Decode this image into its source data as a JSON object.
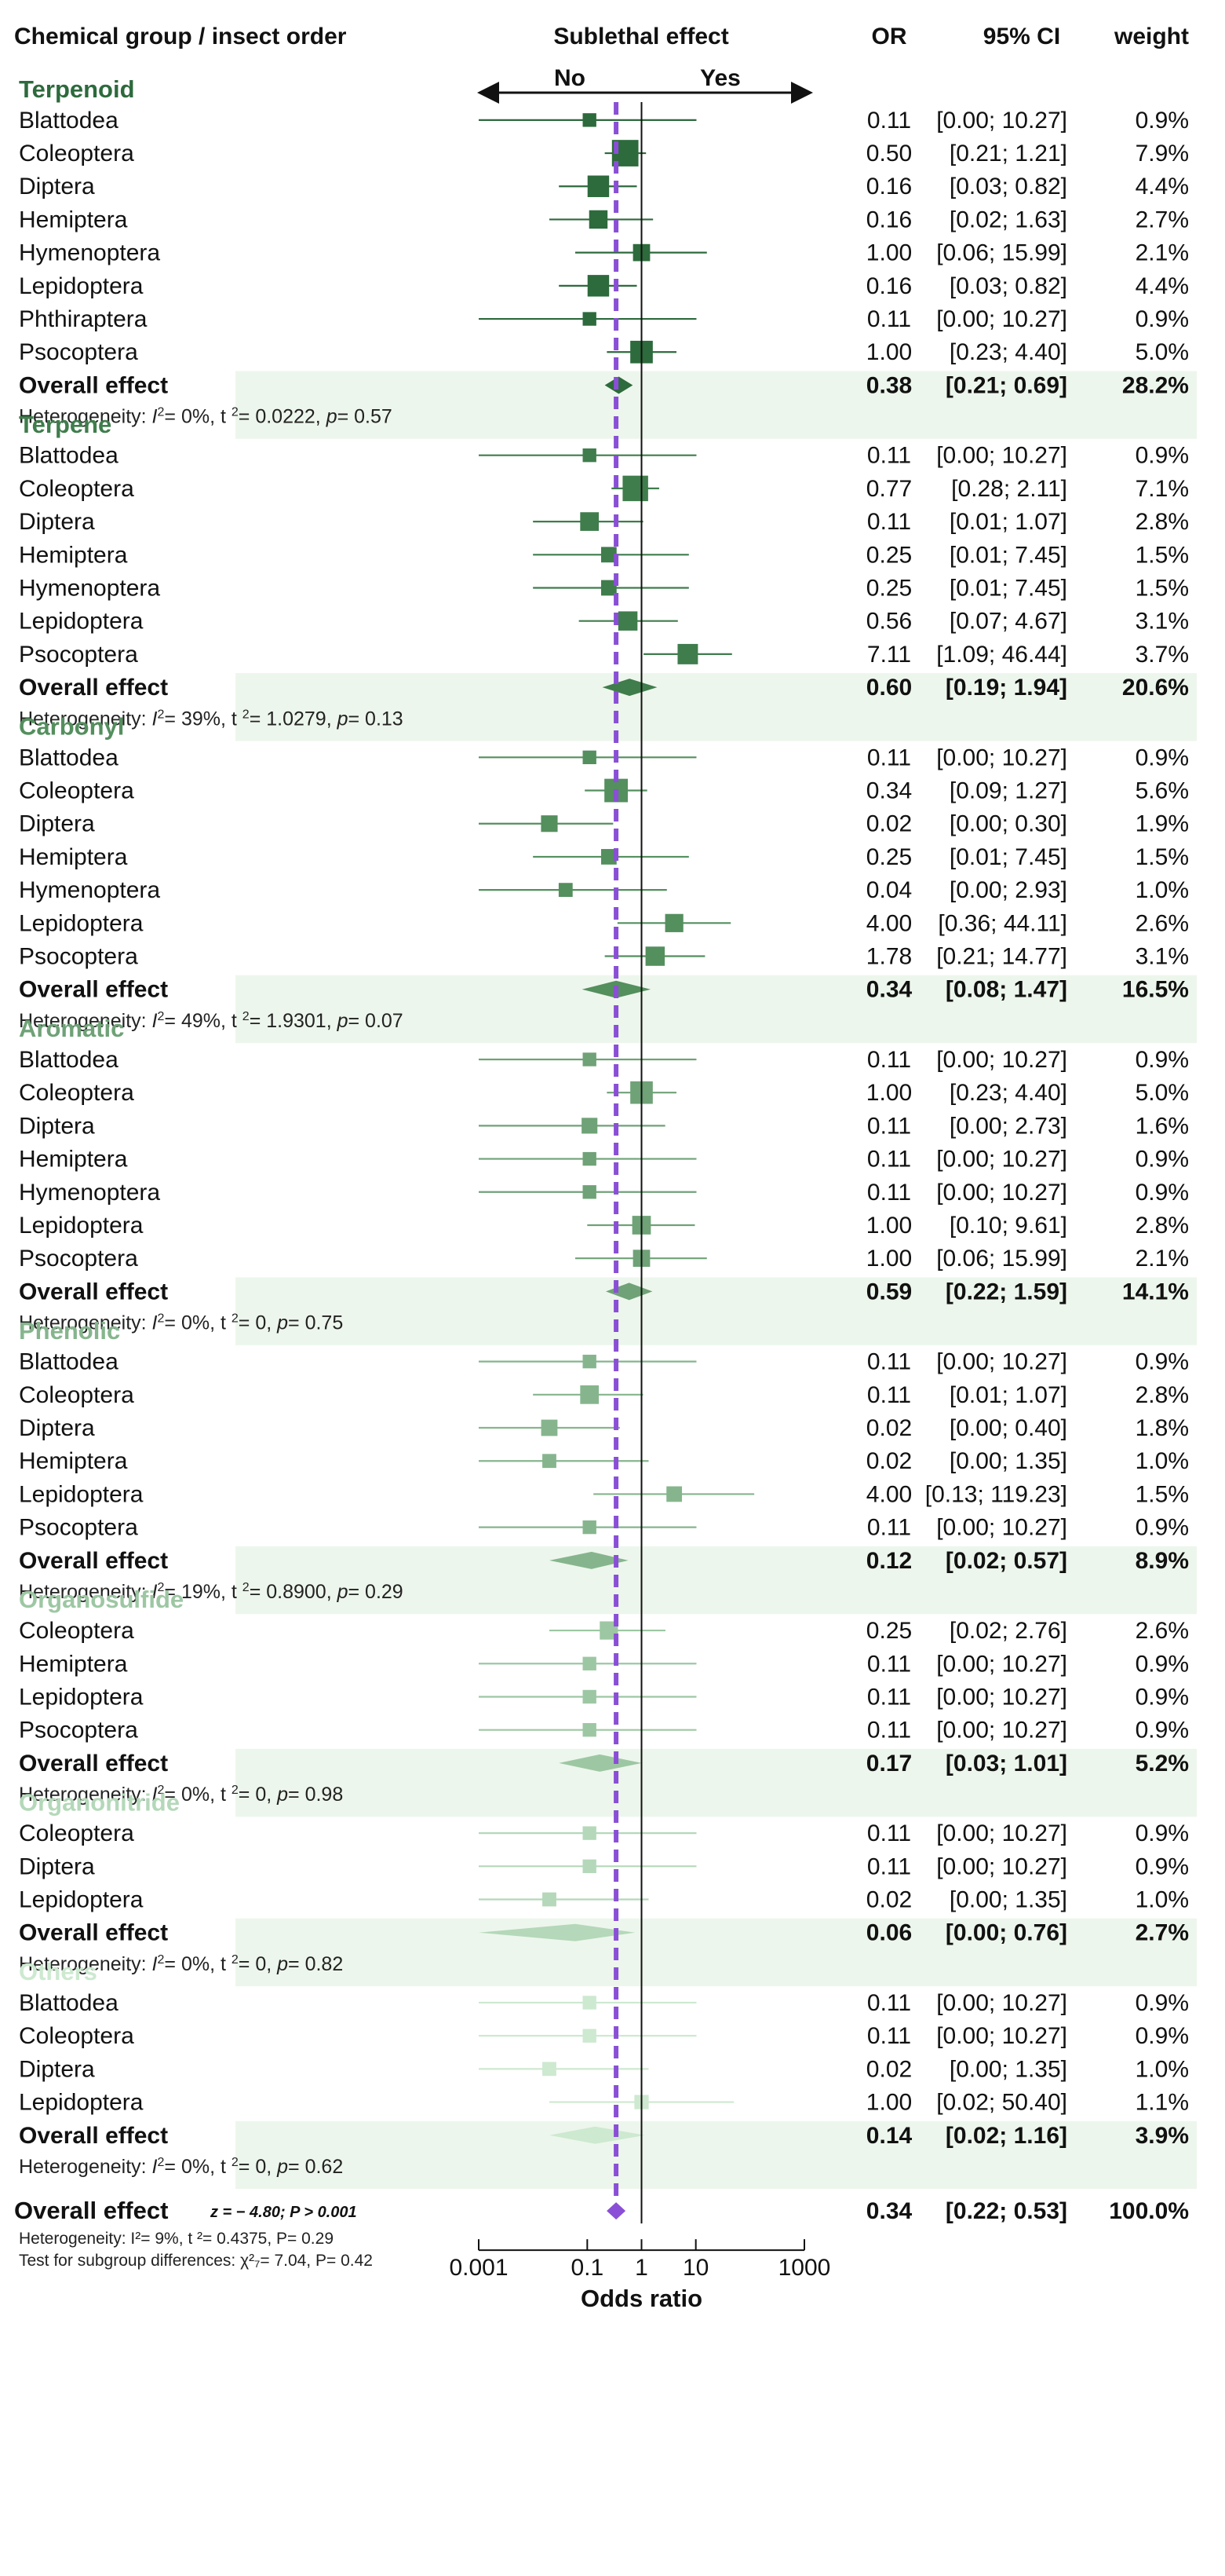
{
  "header": {
    "group_col": "Chemical group / insect order",
    "effect_col": "Sublethal effect",
    "or_col": "OR",
    "ci_col": "95% CI",
    "weight_col": "weight",
    "no_label": "No",
    "yes_label": "Yes"
  },
  "chart_data": {
    "type": "forest",
    "xlabel": "Odds ratio",
    "x_scale": "log",
    "xlim": [
      0.001,
      1000
    ],
    "x_ticks": [
      "0.001",
      "0.1",
      "1",
      "10",
      "1000"
    ],
    "x_tick_values": [
      0.001,
      0.1,
      1,
      10,
      1000
    ],
    "null_line": 1,
    "pooled_line": 0.34,
    "groups": [
      {
        "name": "Terpenoid",
        "color": "#2d6a3c",
        "studies": [
          {
            "label": "Blattodea",
            "or": 0.11,
            "lo": 0.0,
            "hi": 10.27,
            "or_text": "0.11",
            "ci_text": "[0.00; 10.27]",
            "weight_text": "0.9%",
            "weight": 0.9
          },
          {
            "label": "Coleoptera",
            "or": 0.5,
            "lo": 0.21,
            "hi": 1.21,
            "or_text": "0.50",
            "ci_text": "[0.21; 1.21]",
            "weight_text": "7.9%",
            "weight": 7.9
          },
          {
            "label": "Diptera",
            "or": 0.16,
            "lo": 0.03,
            "hi": 0.82,
            "or_text": "0.16",
            "ci_text": "[0.03; 0.82]",
            "weight_text": "4.4%",
            "weight": 4.4
          },
          {
            "label": "Hemiptera",
            "or": 0.16,
            "lo": 0.02,
            "hi": 1.63,
            "or_text": "0.16",
            "ci_text": "[0.02; 1.63]",
            "weight_text": "2.7%",
            "weight": 2.7
          },
          {
            "label": "Hymenoptera",
            "or": 1.0,
            "lo": 0.06,
            "hi": 15.99,
            "or_text": "1.00",
            "ci_text": "[0.06; 15.99]",
            "weight_text": "2.1%",
            "weight": 2.1
          },
          {
            "label": "Lepidoptera",
            "or": 0.16,
            "lo": 0.03,
            "hi": 0.82,
            "or_text": "0.16",
            "ci_text": "[0.03; 0.82]",
            "weight_text": "4.4%",
            "weight": 4.4
          },
          {
            "label": "Phthiraptera",
            "or": 0.11,
            "lo": 0.0,
            "hi": 10.27,
            "or_text": "0.11",
            "ci_text": "[0.00; 10.27]",
            "weight_text": "0.9%",
            "weight": 0.9
          },
          {
            "label": "Psocoptera",
            "or": 1.0,
            "lo": 0.23,
            "hi": 4.4,
            "or_text": "1.00",
            "ci_text": "[0.23; 4.40]",
            "weight_text": "5.0%",
            "weight": 5.0
          }
        ],
        "overall": {
          "label": "Overall effect",
          "or": 0.38,
          "lo": 0.21,
          "hi": 0.69,
          "or_text": "0.38",
          "ci_text": "[0.21; 0.69]",
          "weight_text": "28.2%"
        },
        "het": {
          "i2": "= 0%,",
          "tau2": "= 0.0222,",
          "p": "= 0.57"
        }
      },
      {
        "name": "Terpene",
        "color": "#3f7d4c",
        "studies": [
          {
            "label": "Blattodea",
            "or": 0.11,
            "lo": 0.0,
            "hi": 10.27,
            "or_text": "0.11",
            "ci_text": "[0.00; 10.27]",
            "weight_text": "0.9%",
            "weight": 0.9
          },
          {
            "label": "Coleoptera",
            "or": 0.77,
            "lo": 0.28,
            "hi": 2.11,
            "or_text": "0.77",
            "ci_text": "[0.28; 2.11]",
            "weight_text": "7.1%",
            "weight": 7.1
          },
          {
            "label": "Diptera",
            "or": 0.11,
            "lo": 0.01,
            "hi": 1.07,
            "or_text": "0.11",
            "ci_text": "[0.01; 1.07]",
            "weight_text": "2.8%",
            "weight": 2.8
          },
          {
            "label": "Hemiptera",
            "or": 0.25,
            "lo": 0.01,
            "hi": 7.45,
            "or_text": "0.25",
            "ci_text": "[0.01; 7.45]",
            "weight_text": "1.5%",
            "weight": 1.5
          },
          {
            "label": "Hymenoptera",
            "or": 0.25,
            "lo": 0.01,
            "hi": 7.45,
            "or_text": "0.25",
            "ci_text": "[0.01; 7.45]",
            "weight_text": "1.5%",
            "weight": 1.5
          },
          {
            "label": "Lepidoptera",
            "or": 0.56,
            "lo": 0.07,
            "hi": 4.67,
            "or_text": "0.56",
            "ci_text": "[0.07; 4.67]",
            "weight_text": "3.1%",
            "weight": 3.1
          },
          {
            "label": "Psocoptera",
            "or": 7.11,
            "lo": 1.09,
            "hi": 46.44,
            "or_text": "7.11",
            "ci_text": "[1.09; 46.44]",
            "weight_text": "3.7%",
            "weight": 3.7
          }
        ],
        "overall": {
          "label": "Overall effect",
          "or": 0.6,
          "lo": 0.19,
          "hi": 1.94,
          "or_text": "0.60",
          "ci_text": "[0.19; 1.94]",
          "weight_text": "20.6%"
        },
        "het": {
          "i2": "= 39%,",
          "tau2": "= 1.0279,",
          "p": "= 0.13"
        }
      },
      {
        "name": "Carbonyl",
        "color": "#548f5e",
        "studies": [
          {
            "label": "Blattodea",
            "or": 0.11,
            "lo": 0.0,
            "hi": 10.27,
            "or_text": "0.11",
            "ci_text": "[0.00; 10.27]",
            "weight_text": "0.9%",
            "weight": 0.9
          },
          {
            "label": "Coleoptera",
            "or": 0.34,
            "lo": 0.09,
            "hi": 1.27,
            "or_text": "0.34",
            "ci_text": "[0.09; 1.27]",
            "weight_text": "5.6%",
            "weight": 5.6
          },
          {
            "label": "Diptera",
            "or": 0.02,
            "lo": 0.0,
            "hi": 0.3,
            "or_text": "0.02",
            "ci_text": "[0.00; 0.30]",
            "weight_text": "1.9%",
            "weight": 1.9
          },
          {
            "label": "Hemiptera",
            "or": 0.25,
            "lo": 0.01,
            "hi": 7.45,
            "or_text": "0.25",
            "ci_text": "[0.01; 7.45]",
            "weight_text": "1.5%",
            "weight": 1.5
          },
          {
            "label": "Hymenoptera",
            "or": 0.04,
            "lo": 0.0,
            "hi": 2.93,
            "or_text": "0.04",
            "ci_text": "[0.00; 2.93]",
            "weight_text": "1.0%",
            "weight": 1.0
          },
          {
            "label": "Lepidoptera",
            "or": 4.0,
            "lo": 0.36,
            "hi": 44.11,
            "or_text": "4.00",
            "ci_text": "[0.36; 44.11]",
            "weight_text": "2.6%",
            "weight": 2.6
          },
          {
            "label": "Psocoptera",
            "or": 1.78,
            "lo": 0.21,
            "hi": 14.77,
            "or_text": "1.78",
            "ci_text": "[0.21; 14.77]",
            "weight_text": "3.1%",
            "weight": 3.1
          }
        ],
        "overall": {
          "label": "Overall effect",
          "or": 0.34,
          "lo": 0.08,
          "hi": 1.47,
          "or_text": "0.34",
          "ci_text": "[0.08; 1.47]",
          "weight_text": "16.5%"
        },
        "het": {
          "i2": "= 49%,",
          "tau2": "= 1.9301,",
          "p": "= 0.07"
        }
      },
      {
        "name": "Aromatic",
        "color": "#6fa277",
        "studies": [
          {
            "label": "Blattodea",
            "or": 0.11,
            "lo": 0.0,
            "hi": 10.27,
            "or_text": "0.11",
            "ci_text": "[0.00; 10.27]",
            "weight_text": "0.9%",
            "weight": 0.9
          },
          {
            "label": "Coleoptera",
            "or": 1.0,
            "lo": 0.23,
            "hi": 4.4,
            "or_text": "1.00",
            "ci_text": "[0.23; 4.40]",
            "weight_text": "5.0%",
            "weight": 5.0
          },
          {
            "label": "Diptera",
            "or": 0.11,
            "lo": 0.0,
            "hi": 2.73,
            "or_text": "0.11",
            "ci_text": "[0.00; 2.73]",
            "weight_text": "1.6%",
            "weight": 1.6
          },
          {
            "label": "Hemiptera",
            "or": 0.11,
            "lo": 0.0,
            "hi": 10.27,
            "or_text": "0.11",
            "ci_text": "[0.00; 10.27]",
            "weight_text": "0.9%",
            "weight": 0.9
          },
          {
            "label": "Hymenoptera",
            "or": 0.11,
            "lo": 0.0,
            "hi": 10.27,
            "or_text": "0.11",
            "ci_text": "[0.00; 10.27]",
            "weight_text": "0.9%",
            "weight": 0.9
          },
          {
            "label": "Lepidoptera",
            "or": 1.0,
            "lo": 0.1,
            "hi": 9.61,
            "or_text": "1.00",
            "ci_text": "[0.10; 9.61]",
            "weight_text": "2.8%",
            "weight": 2.8
          },
          {
            "label": "Psocoptera",
            "or": 1.0,
            "lo": 0.06,
            "hi": 15.99,
            "or_text": "1.00",
            "ci_text": "[0.06; 15.99]",
            "weight_text": "2.1%",
            "weight": 2.1
          }
        ],
        "overall": {
          "label": "Overall effect",
          "or": 0.59,
          "lo": 0.22,
          "hi": 1.59,
          "or_text": "0.59",
          "ci_text": "[0.22; 1.59]",
          "weight_text": "14.1%"
        },
        "het": {
          "i2": "= 0%,",
          "tau2": "= 0,",
          "p": "= 0.75"
        }
      },
      {
        "name": "Phenolic",
        "color": "#86b58d",
        "studies": [
          {
            "label": "Blattodea",
            "or": 0.11,
            "lo": 0.0,
            "hi": 10.27,
            "or_text": "0.11",
            "ci_text": "[0.00; 10.27]",
            "weight_text": "0.9%",
            "weight": 0.9
          },
          {
            "label": "Coleoptera",
            "or": 0.11,
            "lo": 0.01,
            "hi": 1.07,
            "or_text": "0.11",
            "ci_text": "[0.01; 1.07]",
            "weight_text": "2.8%",
            "weight": 2.8
          },
          {
            "label": "Diptera",
            "or": 0.02,
            "lo": 0.0,
            "hi": 0.4,
            "or_text": "0.02",
            "ci_text": "[0.00; 0.40]",
            "weight_text": "1.8%",
            "weight": 1.8
          },
          {
            "label": "Hemiptera",
            "or": 0.02,
            "lo": 0.0,
            "hi": 1.35,
            "or_text": "0.02",
            "ci_text": "[0.00; 1.35]",
            "weight_text": "1.0%",
            "weight": 1.0
          },
          {
            "label": "Lepidoptera",
            "or": 4.0,
            "lo": 0.13,
            "hi": 119.23,
            "or_text": "4.00",
            "ci_text": "[0.13; 119.23]",
            "weight_text": "1.5%",
            "weight": 1.5
          },
          {
            "label": "Psocoptera",
            "or": 0.11,
            "lo": 0.0,
            "hi": 10.27,
            "or_text": "0.11",
            "ci_text": "[0.00; 10.27]",
            "weight_text": "0.9%",
            "weight": 0.9
          }
        ],
        "overall": {
          "label": "Overall effect",
          "or": 0.12,
          "lo": 0.02,
          "hi": 0.57,
          "or_text": "0.12",
          "ci_text": "[0.02; 0.57]",
          "weight_text": "8.9%"
        },
        "het": {
          "i2": "= 19%,",
          "tau2": "= 0.8900,",
          "p": "= 0.29"
        }
      },
      {
        "name": "Organosulfide",
        "color": "#9dc7a3",
        "studies": [
          {
            "label": "Coleoptera",
            "or": 0.25,
            "lo": 0.02,
            "hi": 2.76,
            "or_text": "0.25",
            "ci_text": "[0.02; 2.76]",
            "weight_text": "2.6%",
            "weight": 2.6
          },
          {
            "label": "Hemiptera",
            "or": 0.11,
            "lo": 0.0,
            "hi": 10.27,
            "or_text": "0.11",
            "ci_text": "[0.00; 10.27]",
            "weight_text": "0.9%",
            "weight": 0.9
          },
          {
            "label": "Lepidoptera",
            "or": 0.11,
            "lo": 0.0,
            "hi": 10.27,
            "or_text": "0.11",
            "ci_text": "[0.00; 10.27]",
            "weight_text": "0.9%",
            "weight": 0.9
          },
          {
            "label": "Psocoptera",
            "or": 0.11,
            "lo": 0.0,
            "hi": 10.27,
            "or_text": "0.11",
            "ci_text": "[0.00; 10.27]",
            "weight_text": "0.9%",
            "weight": 0.9
          }
        ],
        "overall": {
          "label": "Overall effect",
          "or": 0.17,
          "lo": 0.03,
          "hi": 1.01,
          "or_text": "0.17",
          "ci_text": "[0.03; 1.01]",
          "weight_text": "5.2%"
        },
        "het": {
          "i2": "= 0%,",
          "tau2": "= 0,",
          "p": "= 0.98"
        }
      },
      {
        "name": "Organonitride",
        "color": "#b4d8b9",
        "studies": [
          {
            "label": "Coleoptera",
            "or": 0.11,
            "lo": 0.0,
            "hi": 10.27,
            "or_text": "0.11",
            "ci_text": "[0.00; 10.27]",
            "weight_text": "0.9%",
            "weight": 0.9
          },
          {
            "label": "Diptera",
            "or": 0.11,
            "lo": 0.0,
            "hi": 10.27,
            "or_text": "0.11",
            "ci_text": "[0.00; 10.27]",
            "weight_text": "0.9%",
            "weight": 0.9
          },
          {
            "label": "Lepidoptera",
            "or": 0.02,
            "lo": 0.0,
            "hi": 1.35,
            "or_text": "0.02",
            "ci_text": "[0.00; 1.35]",
            "weight_text": "1.0%",
            "weight": 1.0
          }
        ],
        "overall": {
          "label": "Overall effect",
          "or": 0.06,
          "lo": 0.0,
          "hi": 0.76,
          "or_text": "0.06",
          "ci_text": "[0.00; 0.76]",
          "weight_text": "2.7%"
        },
        "het": {
          "i2": "= 0%,",
          "tau2": "= 0,",
          "p": "= 0.82"
        }
      },
      {
        "name": "Others",
        "color": "#cde9d0",
        "studies": [
          {
            "label": "Blattodea",
            "or": 0.11,
            "lo": 0.0,
            "hi": 10.27,
            "or_text": "0.11",
            "ci_text": "[0.00; 10.27]",
            "weight_text": "0.9%",
            "weight": 0.9
          },
          {
            "label": "Coleoptera",
            "or": 0.11,
            "lo": 0.0,
            "hi": 10.27,
            "or_text": "0.11",
            "ci_text": "[0.00; 10.27]",
            "weight_text": "0.9%",
            "weight": 0.9
          },
          {
            "label": "Diptera",
            "or": 0.02,
            "lo": 0.0,
            "hi": 1.35,
            "or_text": "0.02",
            "ci_text": "[0.00; 1.35]",
            "weight_text": "1.0%",
            "weight": 1.0
          },
          {
            "label": "Lepidoptera",
            "or": 1.0,
            "lo": 0.02,
            "hi": 50.4,
            "or_text": "1.00",
            "ci_text": "[0.02; 50.40]",
            "weight_text": "1.1%",
            "weight": 1.1
          }
        ],
        "overall": {
          "label": "Overall effect",
          "or": 0.14,
          "lo": 0.02,
          "hi": 1.16,
          "or_text": "0.14",
          "ci_text": "[0.02; 1.16]",
          "weight_text": "3.9%"
        },
        "het": {
          "i2": "= 0%,",
          "tau2": "= 0,",
          "p": "= 0.62"
        }
      }
    ],
    "overall": {
      "label": "Overall effect",
      "z_text": "z = − 4.80; P > 0.001",
      "or": 0.34,
      "lo": 0.22,
      "hi": 0.53,
      "or_text": "0.34",
      "ci_text": "[0.22; 0.53]",
      "weight_text": "100.0%",
      "het_text": "Heterogeneity: I²= 9%, t ²= 0.4375,  P= 0.29",
      "subgroup_text": "Test for subgroup differences: χ²₇= 7.04,  P= 0.42"
    }
  },
  "colors": {
    "band": "#edf6ec",
    "pooled_line": "#8a4fd6",
    "axis": "#111111"
  }
}
